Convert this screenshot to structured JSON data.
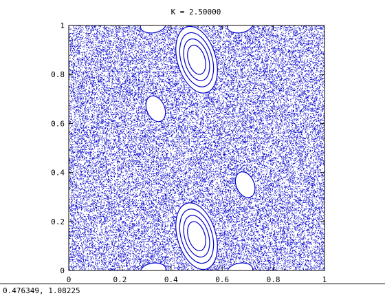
{
  "window": {
    "coord_readout": "0.476349,  1.08225"
  },
  "chart_data": {
    "type": "scatter",
    "title": "K = 2.50000",
    "xlabel": "",
    "ylabel": "",
    "xlim": [
      0,
      1
    ],
    "ylim": [
      0,
      1
    ],
    "xticks": [
      "0",
      "0.2",
      "0.4",
      "0.6",
      "0.8",
      "1"
    ],
    "yticks": [
      "0",
      "0.2",
      "0.4",
      "0.6",
      "0.8",
      "1"
    ],
    "grid": false,
    "point_color": "#0000cc",
    "chaotic_sea_points": 36000,
    "islands": [
      {
        "center": [
          0.5,
          0.86
        ],
        "semi_axes": [
          0.075,
          0.14
        ],
        "tilt": 0.18,
        "rings": 4
      },
      {
        "center": [
          0.5,
          0.14
        ],
        "semi_axes": [
          0.075,
          0.14
        ],
        "tilt": 0.18,
        "rings": 4
      },
      {
        "center": [
          0.34,
          0.66
        ],
        "semi_axes": [
          0.035,
          0.055
        ],
        "tilt": 0.25,
        "rings": 1
      },
      {
        "center": [
          0.69,
          0.35
        ],
        "semi_axes": [
          0.035,
          0.055
        ],
        "tilt": 0.25,
        "rings": 1
      },
      {
        "center": [
          0.33,
          1.0
        ],
        "semi_axes": [
          0.05,
          0.03
        ],
        "tilt": 0.1,
        "rings": 1
      },
      {
        "center": [
          0.67,
          1.0
        ],
        "semi_axes": [
          0.05,
          0.03
        ],
        "tilt": 0.1,
        "rings": 1
      },
      {
        "center": [
          0.33,
          0.0
        ],
        "semi_axes": [
          0.05,
          0.03
        ],
        "tilt": 0.1,
        "rings": 1
      },
      {
        "center": [
          0.67,
          0.0
        ],
        "semi_axes": [
          0.05,
          0.03
        ],
        "tilt": 0.1,
        "rings": 1
      }
    ]
  }
}
